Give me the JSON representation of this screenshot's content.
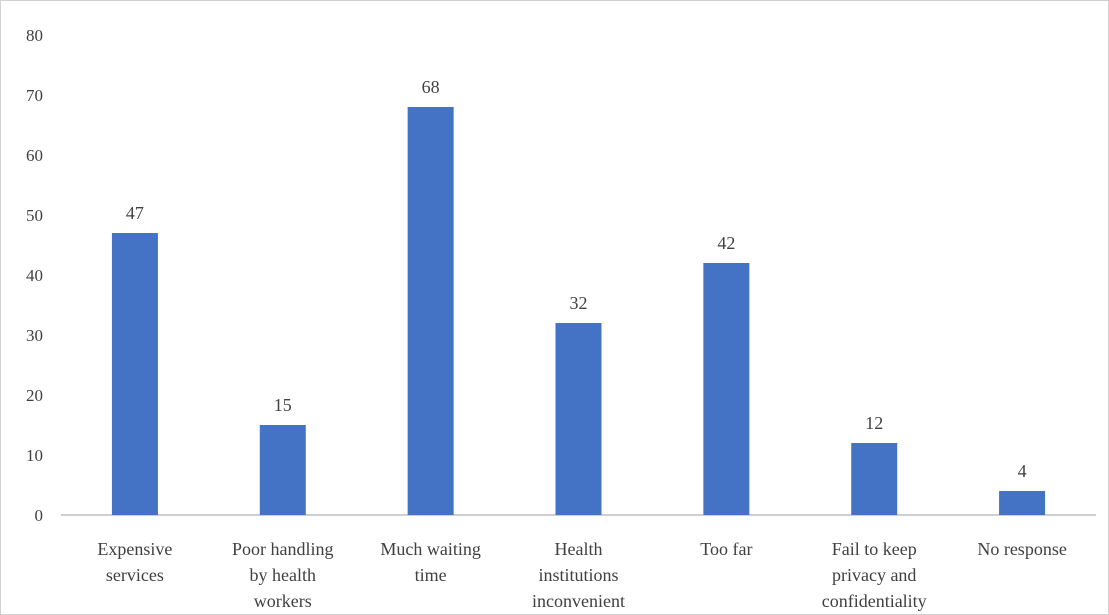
{
  "chart_data": {
    "type": "bar",
    "categories": [
      [
        "Expensive",
        "services"
      ],
      [
        "Poor handling",
        "by health",
        "workers"
      ],
      [
        "Much waiting",
        "time"
      ],
      [
        "Health",
        "institutions",
        "inconvenient"
      ],
      [
        "Too far"
      ],
      [
        "Fail to keep",
        "privacy and",
        "confidentiality"
      ],
      [
        "No response"
      ]
    ],
    "values": [
      47,
      15,
      68,
      32,
      42,
      12,
      4
    ],
    "title": "",
    "xlabel": "",
    "ylabel": "",
    "ylim": [
      0,
      80
    ],
    "yticks": [
      0,
      10,
      20,
      30,
      40,
      50,
      60,
      70,
      80
    ],
    "grid": false,
    "legend": "none",
    "bar_color": "#4472C4",
    "axis_color": "#bfbfbf",
    "text_color": "#404040",
    "data_labels": true
  }
}
